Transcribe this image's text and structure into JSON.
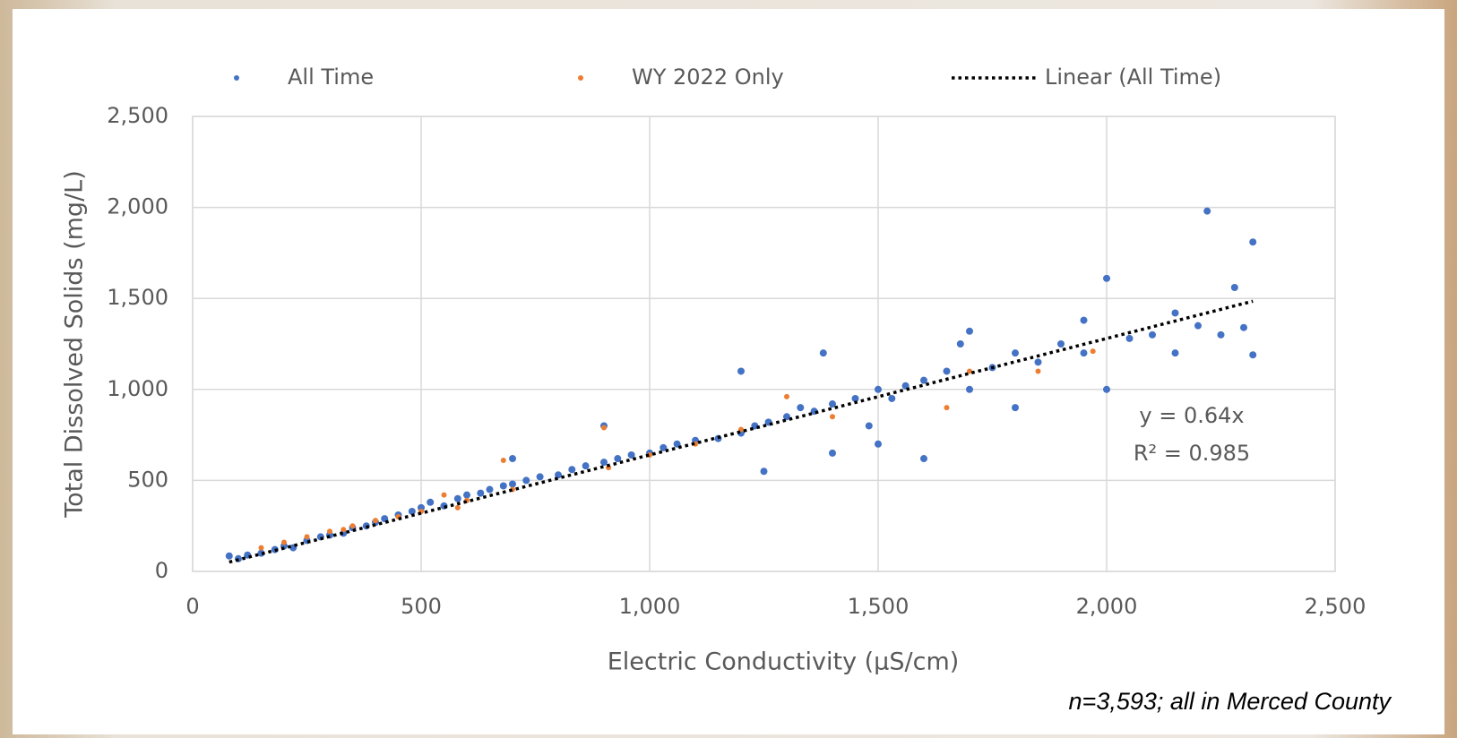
{
  "chart_data": {
    "type": "scatter",
    "x_label": "Electric Conductivity (µS/cm)",
    "y_label": "Total Dissolved Solids (mg/L)",
    "xlim": [
      0,
      2500
    ],
    "ylim": [
      0,
      2500
    ],
    "xticks": [
      0,
      500,
      {
        "value": 1000,
        "label": "1,000"
      },
      {
        "value": 1500,
        "label": "1,500"
      },
      {
        "value": 2000,
        "label": "2,000"
      },
      {
        "value": 2500,
        "label": "2,500"
      }
    ],
    "yticks": [
      0,
      500,
      {
        "value": 1000,
        "label": "1,000"
      },
      {
        "value": 1500,
        "label": "1,500"
      },
      {
        "value": 2000,
        "label": "2,000"
      },
      {
        "value": 2500,
        "label": "2,500"
      }
    ],
    "grid": true,
    "legend": "top",
    "series": [
      {
        "name": "All Time",
        "color": "#4472c4",
        "style": "marker",
        "x": [
          80,
          100,
          120,
          150,
          180,
          200,
          220,
          250,
          280,
          300,
          330,
          350,
          380,
          400,
          420,
          450,
          480,
          500,
          520,
          550,
          580,
          600,
          630,
          650,
          680,
          700,
          730,
          760,
          800,
          830,
          860,
          900,
          930,
          960,
          1000,
          1030,
          1060,
          1100,
          1150,
          1200,
          1230,
          1260,
          1300,
          1330,
          1360,
          1400,
          1450,
          1480,
          1500,
          1530,
          1560,
          1600,
          1650,
          1680,
          1700,
          1750,
          1800,
          1850,
          1900,
          1950,
          2000,
          2050,
          2100,
          2150,
          2200,
          2220,
          2250,
          2280,
          2300,
          2320,
          2320,
          1200,
          1380,
          1400,
          1500,
          1250,
          900,
          700,
          2150,
          1950,
          1700,
          1800,
          2000,
          1600
        ],
        "values": [
          85,
          70,
          90,
          100,
          120,
          140,
          130,
          170,
          190,
          200,
          210,
          240,
          250,
          270,
          290,
          310,
          330,
          350,
          380,
          360,
          400,
          420,
          430,
          450,
          470,
          480,
          500,
          520,
          530,
          560,
          580,
          600,
          620,
          640,
          650,
          680,
          700,
          720,
          730,
          760,
          800,
          820,
          850,
          900,
          880,
          920,
          950,
          800,
          1000,
          950,
          1020,
          1050,
          1100,
          1250,
          1000,
          1120,
          1200,
          1150,
          1250,
          1200,
          1610,
          1280,
          1300,
          1420,
          1350,
          1980,
          1300,
          1560,
          1340,
          1810,
          1190,
          1100,
          1200,
          650,
          700,
          550,
          800,
          620,
          1200,
          1380,
          1320,
          900,
          1000,
          620
        ]
      },
      {
        "name": "WY 2022 Only",
        "color": "#ed7d31",
        "style": "marker",
        "x": [
          150,
          200,
          250,
          300,
          330,
          350,
          400,
          450,
          500,
          550,
          580,
          600,
          680,
          700,
          900,
          910,
          1000,
          1100,
          1200,
          1300,
          1400,
          1650,
          1700,
          1850,
          1970
        ],
        "values": [
          130,
          160,
          190,
          220,
          230,
          250,
          280,
          300,
          330,
          420,
          350,
          390,
          610,
          450,
          790,
          570,
          640,
          700,
          780,
          960,
          850,
          900,
          1100,
          1100,
          1210
        ]
      },
      {
        "name": "Linear (All Time)",
        "color": "#000000",
        "style": "dotted",
        "x": [
          80,
          2320
        ],
        "values": [
          51.2,
          1484.8
        ]
      }
    ],
    "annotations": [
      "y = 0.64x",
      "R² = 0.985"
    ],
    "footnote": "n=3,593; all in Merced County"
  }
}
